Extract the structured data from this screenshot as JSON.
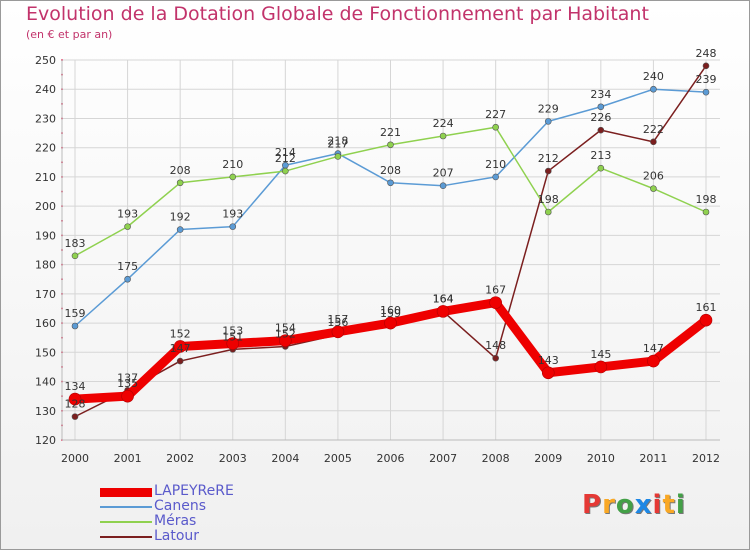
{
  "title": "Evolution de la Dotation Globale de Fonctionnement par Habitant",
  "subtitle": "(en € et par an)",
  "logo": [
    "P",
    "r",
    "o",
    "x",
    "i",
    "t",
    "i"
  ],
  "colors": {
    "logo": [
      "#e53935",
      "#f9a825",
      "#43a047",
      "#1e88e5",
      "#e53935",
      "#f9a825",
      "#43a047"
    ]
  },
  "chart_data": {
    "type": "line",
    "title": "Evolution de la Dotation Globale de Fonctionnement par Habitant",
    "subtitle": "(en € et par an)",
    "xlabel": "",
    "ylabel": "",
    "ylim": [
      120,
      250
    ],
    "yticks": [
      120,
      130,
      140,
      150,
      160,
      170,
      180,
      190,
      200,
      210,
      220,
      230,
      240,
      250
    ],
    "grid": true,
    "legend": "bottom-left",
    "x": [
      "2000",
      "2001",
      "2002",
      "2003",
      "2004",
      "2005",
      "2006",
      "2007",
      "2008",
      "2009",
      "2010",
      "2011",
      "2012"
    ],
    "series": [
      {
        "name": "LAPEYReRE",
        "color": "#ee0000",
        "width": 9,
        "values": [
          134,
          135,
          152,
          153,
          154,
          157,
          160,
          164,
          167,
          143,
          145,
          147,
          161
        ],
        "labels": [
          134,
          135,
          152,
          153,
          154,
          157,
          160,
          164,
          167,
          143,
          145,
          147,
          161
        ]
      },
      {
        "name": "Canens",
        "color": "#5b9bd5",
        "width": 1.5,
        "values": [
          159,
          175,
          192,
          193,
          214,
          218,
          208,
          207,
          210,
          229,
          234,
          240,
          239
        ],
        "labels": [
          159,
          175,
          192,
          193,
          214,
          218,
          208,
          207,
          210,
          229,
          234,
          240,
          239
        ]
      },
      {
        "name": "Méras",
        "color": "#8fd14f",
        "width": 1.5,
        "values": [
          183,
          193,
          208,
          210,
          212,
          217,
          221,
          224,
          227,
          198,
          213,
          206,
          198
        ],
        "labels": [
          183,
          193,
          208,
          210,
          212,
          217,
          221,
          224,
          227,
          198,
          213,
          206,
          198
        ]
      },
      {
        "name": "Latour",
        "color": "#7b1f1f",
        "width": 1.5,
        "values": [
          128,
          137,
          147,
          151,
          152,
          156,
          159,
          164,
          148,
          212,
          226,
          222,
          248
        ],
        "labels": [
          128,
          137,
          147,
          151,
          152,
          156,
          159,
          164,
          148,
          212,
          226,
          222,
          248
        ]
      }
    ]
  }
}
